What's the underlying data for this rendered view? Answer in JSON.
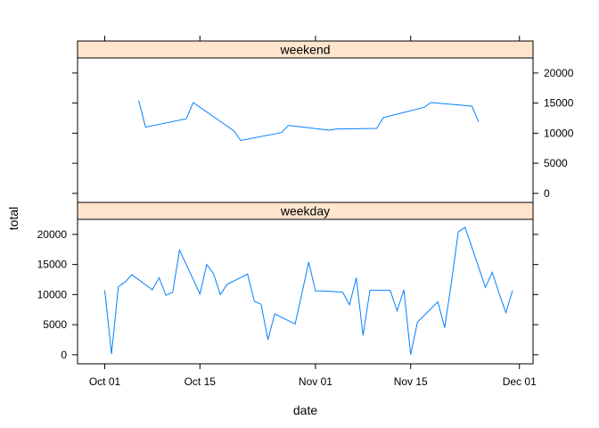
{
  "chart_data": {
    "type": "line",
    "xlabel": "date",
    "ylabel": "total",
    "xlim": [
      "2012-09-27",
      "2012-12-03"
    ],
    "x_ticks": [
      {
        "date": "2012-10-01",
        "label": "Oct 01"
      },
      {
        "date": "2012-10-15",
        "label": "Oct 15"
      },
      {
        "date": "2012-11-01",
        "label": "Nov 01"
      },
      {
        "date": "2012-11-15",
        "label": "Nov 15"
      },
      {
        "date": "2012-12-01",
        "label": "Dec 01"
      }
    ],
    "ylim": [
      -1500,
      22500
    ],
    "y_ticks": [
      0,
      5000,
      10000,
      15000,
      20000
    ],
    "line_color": "#0080ff",
    "strip_color": "#ffe5cc",
    "panels": [
      {
        "name": "weekend",
        "x": [
          "2012-10-06",
          "2012-10-07",
          "2012-10-13",
          "2012-10-14",
          "2012-10-20",
          "2012-10-21",
          "2012-10-27",
          "2012-10-28",
          "2012-11-03",
          "2012-11-04",
          "2012-11-10",
          "2012-11-11",
          "2012-11-17",
          "2012-11-18",
          "2012-11-24",
          "2012-11-25"
        ],
        "y": [
          15400,
          11000,
          12400,
          15100,
          10400,
          8800,
          10100,
          11300,
          10500,
          10700,
          10800,
          12600,
          14300,
          15100,
          14500,
          11900
        ]
      },
      {
        "name": "weekday",
        "x": [
          "2012-10-01",
          "2012-10-02",
          "2012-10-03",
          "2012-10-04",
          "2012-10-05",
          "2012-10-08",
          "2012-10-09",
          "2012-10-10",
          "2012-10-11",
          "2012-10-12",
          "2012-10-15",
          "2012-10-16",
          "2012-10-17",
          "2012-10-18",
          "2012-10-19",
          "2012-10-22",
          "2012-10-23",
          "2012-10-24",
          "2012-10-25",
          "2012-10-26",
          "2012-10-29",
          "2012-10-30",
          "2012-10-31",
          "2012-11-01",
          "2012-11-02",
          "2012-11-05",
          "2012-11-06",
          "2012-11-07",
          "2012-11-08",
          "2012-11-09",
          "2012-11-12",
          "2012-11-13",
          "2012-11-14",
          "2012-11-15",
          "2012-11-16",
          "2012-11-19",
          "2012-11-20",
          "2012-11-21",
          "2012-11-22",
          "2012-11-23",
          "2012-11-26",
          "2012-11-27",
          "2012-11-28",
          "2012-11-29",
          "2012-11-30"
        ],
        "y": [
          10700,
          150,
          11300,
          12100,
          13300,
          10800,
          12800,
          9900,
          10400,
          17400,
          10100,
          15000,
          13500,
          10000,
          11700,
          13400,
          8900,
          8400,
          2500,
          6800,
          5100,
          10200,
          15400,
          10600,
          10600,
          10400,
          8300,
          12800,
          3200,
          10700,
          10700,
          7300,
          10800,
          40,
          5400,
          8800,
          4500,
          12100,
          20400,
          21200,
          11200,
          13700,
          10200,
          7000,
          10700
        ]
      }
    ]
  }
}
